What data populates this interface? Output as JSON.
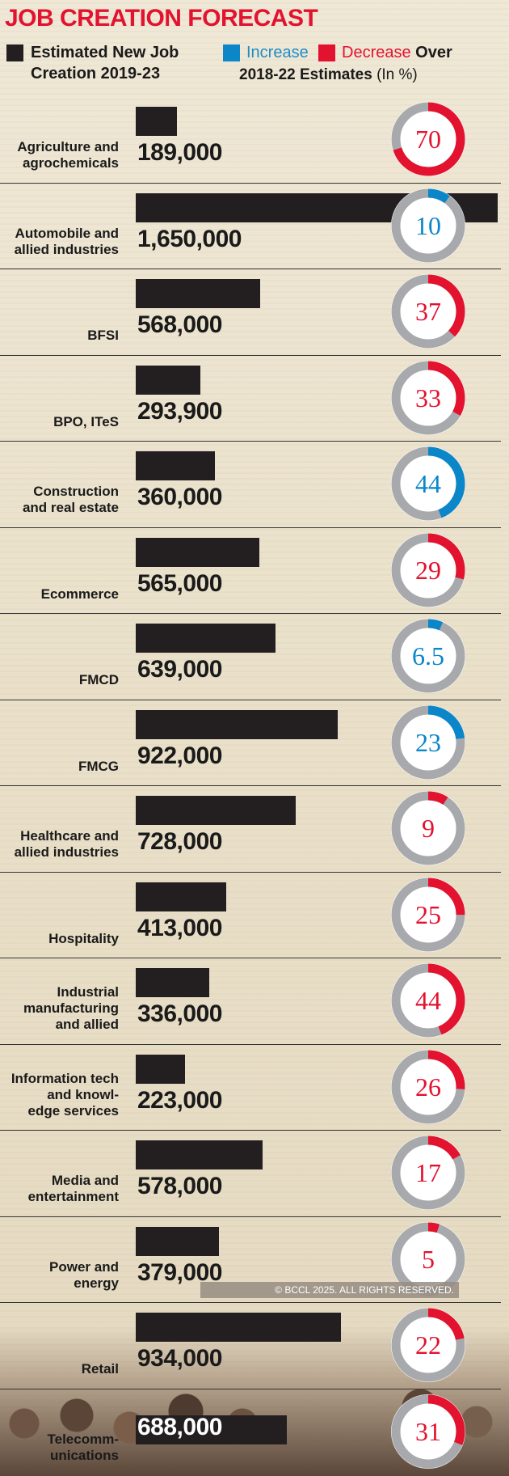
{
  "title": "JOB CREATION FORECAST",
  "legend": {
    "estimated": "Estimated New Job Creation 2019-23",
    "increase": "Increase",
    "decrease": "Decrease",
    "over": "Over",
    "estimates": "2018-22 Estimates",
    "unit": "(In %)"
  },
  "colors": {
    "increase": "#0b86c9",
    "decrease": "#e3122f",
    "ring": "#a7a9ac",
    "bar": "#231f20"
  },
  "copyright": "© BCCL 2025. ALL RIGHTS RESERVED.",
  "chart_data": {
    "type": "bar",
    "title": "JOB CREATION FORECAST",
    "series": [
      {
        "name": "Estimated New Job Creation 2019-23",
        "values": [
          189000,
          1650000,
          568000,
          293900,
          360000,
          565000,
          639000,
          922000,
          728000,
          413000,
          336000,
          223000,
          578000,
          379000,
          934000,
          688000
        ]
      },
      {
        "name": "Change Over 2018-22 Estimates (In %)",
        "values": [
          70,
          10,
          37,
          33,
          44,
          29,
          6.5,
          23,
          9,
          25,
          44,
          26,
          17,
          5,
          22,
          31
        ]
      }
    ],
    "categories": [
      "Agriculture and agrochemicals",
      "Automobile and allied industries",
      "BFSI",
      "BPO, ITeS",
      "Construction and real estate",
      "Ecommerce",
      "FMCD",
      "FMCG",
      "Healthcare and allied industries",
      "Hospitality",
      "Industrial manufacturing and allied",
      "Information tech and knowl-edge services",
      "Media and entertainment",
      "Power and energy",
      "Retail",
      "Telecomm-unications"
    ],
    "rows": [
      {
        "label": [
          "Agriculture and",
          "agrochemicals"
        ],
        "jobs": 189000,
        "jobs_text": "189,000",
        "change": 70,
        "change_text": "70",
        "direction": "decrease"
      },
      {
        "label": [
          "Automobile and",
          "allied industries"
        ],
        "jobs": 1650000,
        "jobs_text": "1,650,000",
        "change": 10,
        "change_text": "10",
        "direction": "increase"
      },
      {
        "label": [
          "BFSI"
        ],
        "jobs": 568000,
        "jobs_text": "568,000",
        "change": 37,
        "change_text": "37",
        "direction": "decrease"
      },
      {
        "label": [
          "BPO, ITeS"
        ],
        "jobs": 293900,
        "jobs_text": "293,900",
        "change": 33,
        "change_text": "33",
        "direction": "decrease"
      },
      {
        "label": [
          "Construction",
          "and real estate"
        ],
        "jobs": 360000,
        "jobs_text": "360,000",
        "change": 44,
        "change_text": "44",
        "direction": "increase"
      },
      {
        "label": [
          "Ecommerce"
        ],
        "jobs": 565000,
        "jobs_text": "565,000",
        "change": 29,
        "change_text": "29",
        "direction": "decrease"
      },
      {
        "label": [
          "FMCD"
        ],
        "jobs": 639000,
        "jobs_text": "639,000",
        "change": 6.5,
        "change_text": "6.5",
        "direction": "increase"
      },
      {
        "label": [
          "FMCG"
        ],
        "jobs": 922000,
        "jobs_text": "922,000",
        "change": 23,
        "change_text": "23",
        "direction": "increase"
      },
      {
        "label": [
          "Healthcare and",
          "allied industries"
        ],
        "jobs": 728000,
        "jobs_text": "728,000",
        "change": 9,
        "change_text": "9",
        "direction": "decrease"
      },
      {
        "label": [
          "Hospitality"
        ],
        "jobs": 413000,
        "jobs_text": "413,000",
        "change": 25,
        "change_text": "25",
        "direction": "decrease"
      },
      {
        "label": [
          "Industrial",
          "manufacturing",
          "and allied"
        ],
        "jobs": 336000,
        "jobs_text": "336,000",
        "change": 44,
        "change_text": "44",
        "direction": "decrease"
      },
      {
        "label": [
          "Information tech",
          "and knowl-",
          "edge services"
        ],
        "jobs": 223000,
        "jobs_text": "223,000",
        "change": 26,
        "change_text": "26",
        "direction": "decrease"
      },
      {
        "label": [
          "Media and",
          "entertainment"
        ],
        "jobs": 578000,
        "jobs_text": "578,000",
        "change": 17,
        "change_text": "17",
        "direction": "decrease"
      },
      {
        "label": [
          "Power and",
          "energy"
        ],
        "jobs": 379000,
        "jobs_text": "379,000",
        "change": 5,
        "change_text": "5",
        "direction": "decrease"
      },
      {
        "label": [
          "Retail"
        ],
        "jobs": 934000,
        "jobs_text": "934,000",
        "change": 22,
        "change_text": "22",
        "direction": "decrease"
      },
      {
        "label": [
          "Telecomm-",
          "unications"
        ],
        "jobs": 688000,
        "jobs_text": "688,000",
        "change": 31,
        "change_text": "31",
        "direction": "decrease"
      }
    ]
  }
}
